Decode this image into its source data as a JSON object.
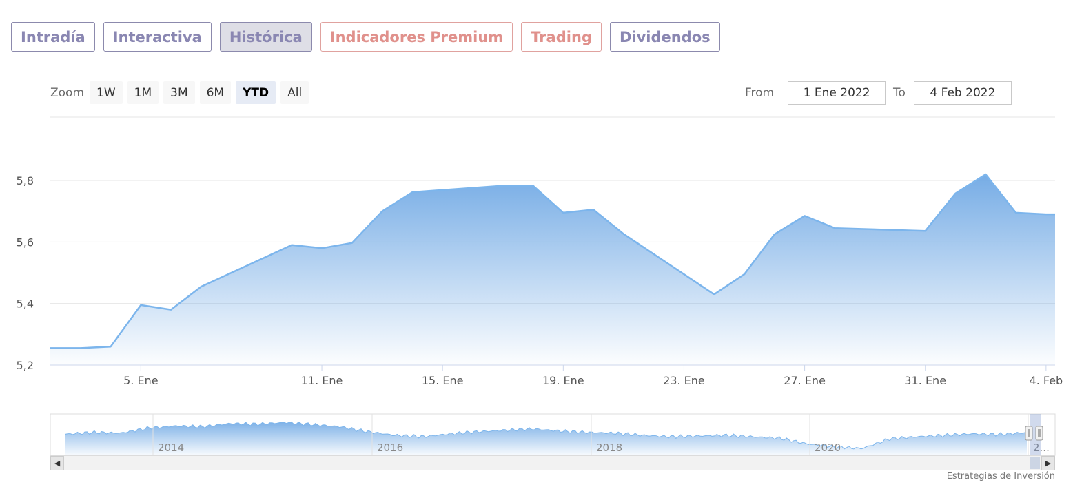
{
  "tabs": [
    {
      "label": "Intradía",
      "style": "purple"
    },
    {
      "label": "Interactiva",
      "style": "purple"
    },
    {
      "label": "Histórica",
      "style": "purple",
      "active": true
    },
    {
      "label": "Indicadores Premium",
      "style": "red"
    },
    {
      "label": "Trading",
      "style": "red"
    },
    {
      "label": "Dividendos",
      "style": "purple"
    }
  ],
  "zoom": {
    "label": "Zoom",
    "buttons": [
      "1W",
      "1M",
      "3M",
      "6M",
      "YTD",
      "All"
    ],
    "selected": "YTD"
  },
  "range": {
    "from_label": "From",
    "from_value": "1 Ene 2022",
    "to_label": "To",
    "to_value": "4 Feb 2022"
  },
  "credit": "Estrategias de Inversión",
  "colors": {
    "series_line": "#7cb5ec",
    "area_top": "#6fa8e4",
    "grid": "#e6e6e6",
    "tab_purple": "#8a87b2",
    "tab_red": "#e0918c"
  },
  "navigator": {
    "labels": [
      "2014",
      "2016",
      "2018",
      "2020",
      "2..."
    ]
  },
  "chart_data": {
    "type": "area",
    "title": "",
    "xlabel": "",
    "ylabel": "",
    "ylim": [
      5.2,
      5.8
    ],
    "yticks": [
      "5,2",
      "5,4",
      "5,6",
      "5,8"
    ],
    "x_tick_labels": [
      "5. Ene",
      "11. Ene",
      "15. Ene",
      "19. Ene",
      "23. Ene",
      "27. Ene",
      "31. Ene",
      "4. Feb"
    ],
    "x": [
      "2022-01-03",
      "2022-01-04",
      "2022-01-05",
      "2022-01-06",
      "2022-01-07",
      "2022-01-10",
      "2022-01-11",
      "2022-01-12",
      "2022-01-13",
      "2022-01-14",
      "2022-01-17",
      "2022-01-18",
      "2022-01-19",
      "2022-01-20",
      "2022-01-21",
      "2022-01-24",
      "2022-01-25",
      "2022-01-26",
      "2022-01-27",
      "2022-01-28",
      "2022-01-31",
      "2022-02-01",
      "2022-02-02",
      "2022-02-03",
      "2022-02-04"
    ],
    "series": [
      {
        "values": [
          5.255,
          5.26,
          5.395,
          5.38,
          5.455,
          5.59,
          5.58,
          5.597,
          5.7,
          5.762,
          5.783,
          5.783,
          5.695,
          5.705,
          5.626,
          5.43,
          5.495,
          5.625,
          5.685,
          5.645,
          5.636,
          5.758,
          5.82,
          5.695,
          5.69
        ]
      }
    ],
    "grid": true,
    "legend": "none"
  }
}
